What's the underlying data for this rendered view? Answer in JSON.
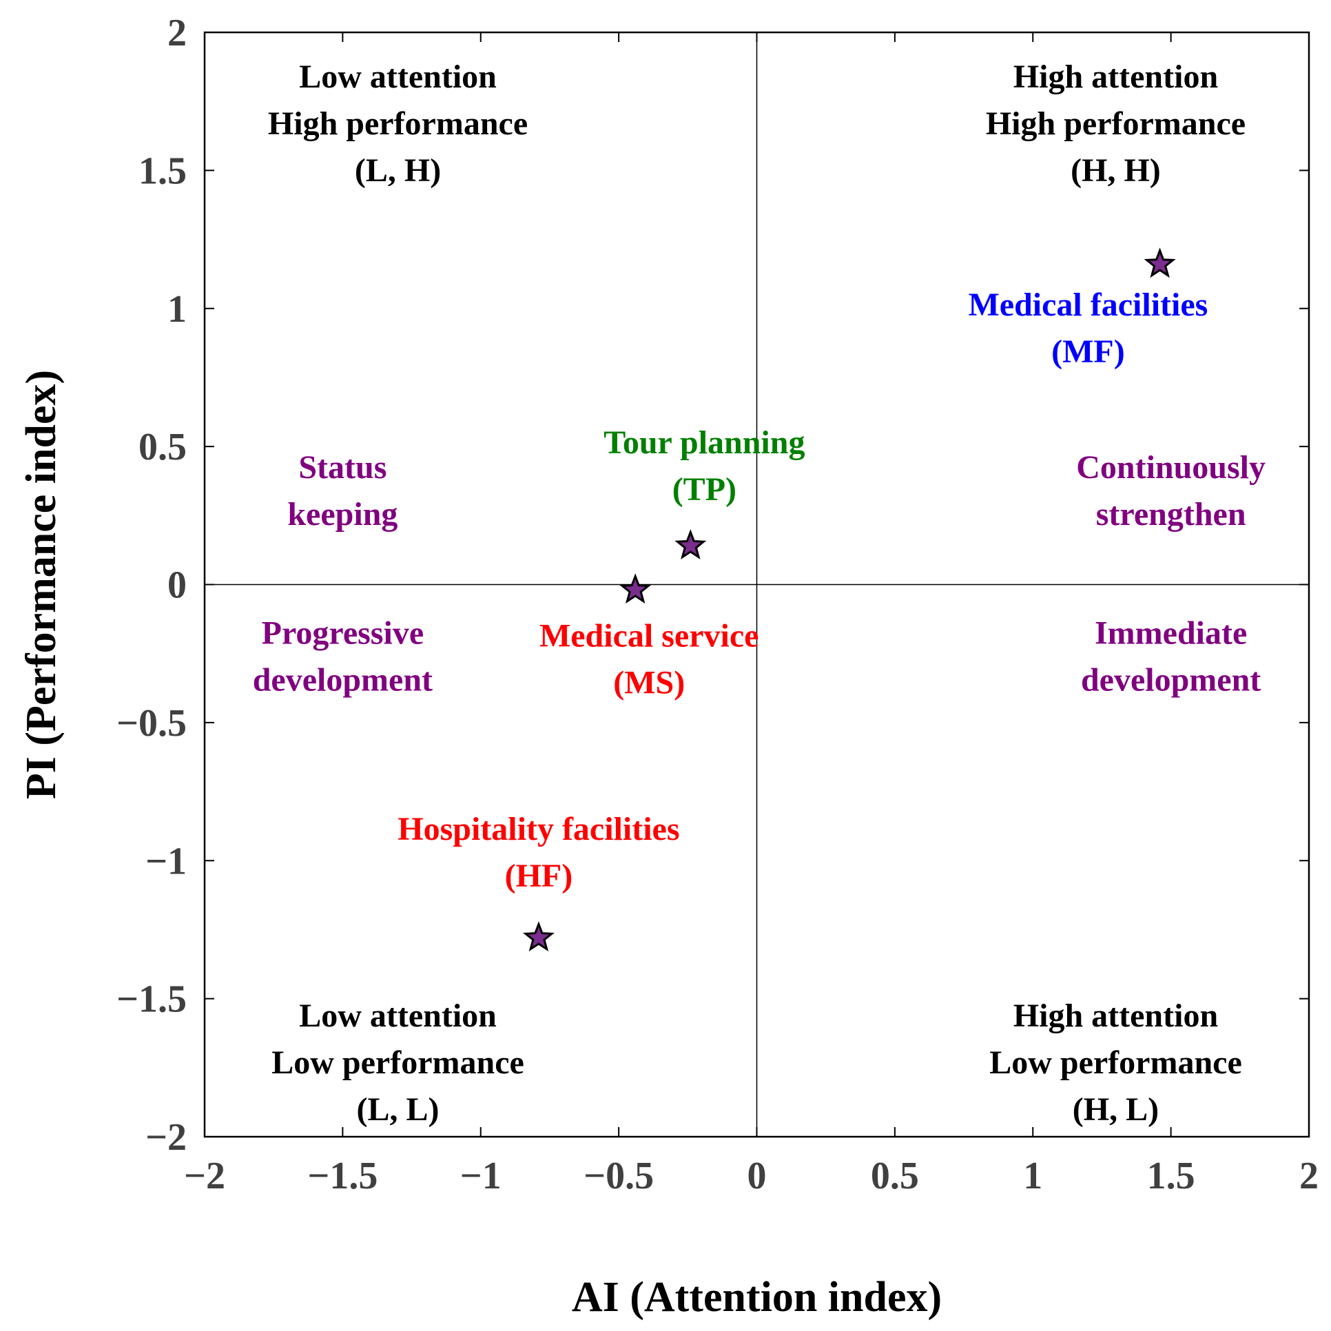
{
  "chart_data": {
    "type": "scatter",
    "title": "",
    "xlabel": "AI (Attention index)",
    "ylabel": "PI (Performance index)",
    "xlim": [
      -2,
      2
    ],
    "ylim": [
      -2,
      2
    ],
    "x_ticks": [
      -2,
      -1.5,
      -1,
      -0.5,
      0,
      0.5,
      1,
      1.5,
      2
    ],
    "y_ticks": [
      -2,
      -1.5,
      -1,
      -0.5,
      0,
      0.5,
      1,
      1.5,
      2
    ],
    "x_tick_labels": [
      "−2",
      "−1.5",
      "−1",
      "−0.5",
      "0",
      "0.5",
      "1",
      "1.5",
      "2"
    ],
    "y_tick_labels": [
      "−2",
      "−1.5",
      "−1",
      "−0.5",
      "0",
      "0.5",
      "1",
      "1.5",
      "2"
    ],
    "reference_lines": {
      "x": 0,
      "y": 0
    },
    "marker": {
      "shape": "star",
      "fill": "#7B2D8E",
      "stroke": "#000000"
    },
    "points": [
      {
        "name": "Medical facilities",
        "abbr": "MF",
        "x": 1.46,
        "y": 1.16,
        "color": "#0000FF"
      },
      {
        "name": "Tour planning",
        "abbr": "TP",
        "x": -0.24,
        "y": 0.14,
        "color": "#008000"
      },
      {
        "name": "Medical service",
        "abbr": "MS",
        "x": -0.44,
        "y": -0.02,
        "color": "#FF0000"
      },
      {
        "name": "Hospitality facilities",
        "abbr": "HF",
        "x": -0.79,
        "y": -1.28,
        "color": "#FF0000"
      }
    ],
    "point_labels": [
      {
        "id": "mf",
        "lines": [
          "Medical facilities",
          "(MF)"
        ],
        "x": 1.2,
        "y": 0.93,
        "color": "#0000FF"
      },
      {
        "id": "tp",
        "lines": [
          "Tour planning",
          "(TP)"
        ],
        "x": -0.19,
        "y": 0.43,
        "color": "#008000"
      },
      {
        "id": "ms",
        "lines": [
          "Medical service",
          "(MS)"
        ],
        "x": -0.39,
        "y": -0.27,
        "color": "#FF0000"
      },
      {
        "id": "hf",
        "lines": [
          "Hospitality facilities",
          "(HF)"
        ],
        "x": -0.79,
        "y": -0.97,
        "color": "#FF0000"
      }
    ],
    "quadrant_labels": [
      {
        "id": "lh",
        "lines": [
          "Low attention",
          "High performance",
          "(L, H)"
        ],
        "x": -1.3,
        "y": 1.67,
        "color": "#000000"
      },
      {
        "id": "hh",
        "lines": [
          "High attention",
          "High performance",
          "(H, H)"
        ],
        "x": 1.3,
        "y": 1.67,
        "color": "#000000"
      },
      {
        "id": "ll",
        "lines": [
          "Low attention",
          "Low performance",
          "(L, L)"
        ],
        "x": -1.3,
        "y": -1.73,
        "color": "#000000"
      },
      {
        "id": "hl",
        "lines": [
          "High attention",
          "Low performance",
          "(H, L)"
        ],
        "x": 1.3,
        "y": -1.73,
        "color": "#000000"
      }
    ],
    "strategy_labels": [
      {
        "id": "status",
        "lines": [
          "Status",
          "keeping"
        ],
        "x": -1.5,
        "y": 0.34,
        "color": "#800080"
      },
      {
        "id": "continuous",
        "lines": [
          "Continuously",
          "strengthen"
        ],
        "x": 1.5,
        "y": 0.34,
        "color": "#800080"
      },
      {
        "id": "progressive",
        "lines": [
          "Progressive",
          "development"
        ],
        "x": -1.5,
        "y": -0.26,
        "color": "#800080"
      },
      {
        "id": "immediate",
        "lines": [
          "Immediate",
          "development"
        ],
        "x": 1.5,
        "y": -0.26,
        "color": "#800080"
      }
    ]
  }
}
